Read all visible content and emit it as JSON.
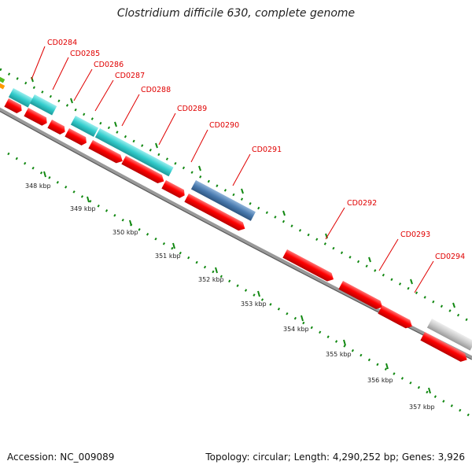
{
  "title": "Clostridium difficile 630, complete genome",
  "footer": {
    "accession": "Accession: NC_009089",
    "summary": "Topology: circular; Length: 4,290,252 bp; Genes: 3,926"
  },
  "colors": {
    "cds": "#ff0000",
    "feature_cyan": "#33cccc",
    "feature_blue": "#4a7bb0",
    "feature_gray": "#c8c8c8",
    "feature_green": "#55bb22",
    "feature_orange": "#ff9900",
    "label": "#e00000",
    "ticks": "#118811"
  },
  "gene_labels": [
    "CD0284",
    "CD0285",
    "CD0286",
    "CD0287",
    "CD0288",
    "CD0289",
    "CD0290",
    "CD0291",
    "CD0292",
    "CD0293",
    "CD0294"
  ],
  "kbp_labels": [
    "348 kbp",
    "349 kbp",
    "350 kbp",
    "351 kbp",
    "352 kbp",
    "353 kbp",
    "354 kbp",
    "355 kbp",
    "356 kbp",
    "357 kbp"
  ]
}
